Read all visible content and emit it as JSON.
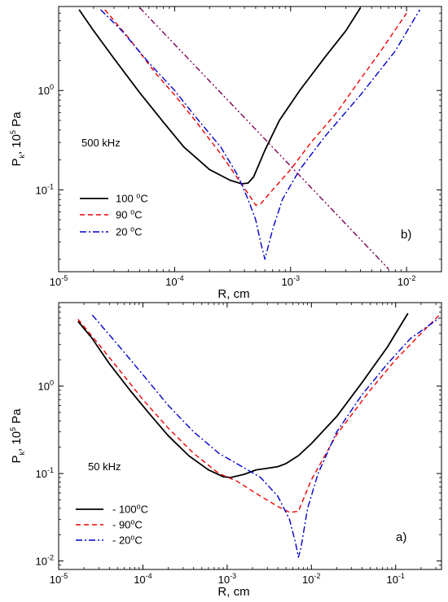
{
  "chart_data": [
    {
      "type": "line",
      "panel_tag": "b)",
      "frequency_label": "500 kHz",
      "xlabel": "R, cm",
      "ylabel": "P_k, 10^5 Pa",
      "xscale": "log",
      "yscale": "log",
      "xlim": [
        1e-05,
        0.02
      ],
      "ylim": [
        0.015,
        7
      ],
      "x_ticks": [
        {
          "value": 1e-05,
          "base": "10",
          "exp": "-5"
        },
        {
          "value": 0.0001,
          "base": "10",
          "exp": "-4"
        },
        {
          "value": 0.001,
          "base": "10",
          "exp": "-3"
        },
        {
          "value": 0.01,
          "base": "10",
          "exp": "-2"
        }
      ],
      "y_ticks": [
        {
          "value": 0.1,
          "base": "10",
          "exp": "-1"
        },
        {
          "value": 1,
          "base": "10",
          "exp": "0"
        }
      ],
      "legend_placement": "bottom-left",
      "series": [
        {
          "name": "100 °C",
          "color": "#000000",
          "dash": "solid",
          "x": [
            1.5e-05,
            2e-05,
            3e-05,
            5e-05,
            8e-05,
            0.00012,
            0.0002,
            0.0003,
            0.00038,
            0.00043,
            0.00048,
            0.0006,
            0.0008,
            0.0012,
            0.002,
            0.003,
            0.004
          ],
          "y": [
            6.5,
            4.0,
            2.1,
            0.95,
            0.48,
            0.27,
            0.16,
            0.125,
            0.115,
            0.117,
            0.135,
            0.25,
            0.5,
            1.0,
            2.2,
            4.0,
            6.8
          ]
        },
        {
          "name": "90 °C",
          "color": "#ee0000",
          "dash": "6,4",
          "x": [
            2.5e-05,
            4e-05,
            7e-05,
            0.0001,
            0.00015,
            0.00025,
            0.00035,
            0.00045,
            0.0005,
            0.00055,
            0.0007,
            0.001,
            0.0015,
            0.0025,
            0.004,
            0.006,
            0.01
          ],
          "y": [
            6.5,
            3.4,
            1.45,
            0.9,
            0.5,
            0.23,
            0.13,
            0.085,
            0.07,
            0.072,
            0.1,
            0.16,
            0.3,
            0.6,
            1.3,
            2.5,
            6.0
          ]
        },
        {
          "name": "20 °C",
          "color": "#0000cc",
          "dash": "8,3,2,3",
          "x": [
            2.3e-05,
            3.5e-05,
            6e-05,
            0.0001,
            0.00015,
            0.00025,
            0.00035,
            0.00043,
            0.0005,
            0.00055,
            0.0006,
            0.0007,
            0.00085,
            0.0012,
            0.002,
            0.004,
            0.008,
            0.013
          ],
          "y": [
            6.5,
            4.0,
            1.9,
            1.0,
            0.55,
            0.27,
            0.14,
            0.08,
            0.05,
            0.03,
            0.02,
            0.04,
            0.08,
            0.16,
            0.35,
            0.9,
            2.5,
            6.5
          ]
        },
        {
          "name": "",
          "color": "#7a0055",
          "dash": "7,3,2,3,2,3",
          "x": [
            5e-05,
            0.007
          ],
          "y": [
            6.8,
            0.016
          ]
        }
      ]
    },
    {
      "type": "line",
      "panel_tag": "a)",
      "frequency_label": "50 kHz",
      "xlabel": "R, cm",
      "ylabel": "P_k, 10^5 Pa",
      "xscale": "log",
      "yscale": "log",
      "xlim": [
        1e-05,
        0.35
      ],
      "ylim": [
        0.008,
        9
      ],
      "x_ticks": [
        {
          "value": 1e-05,
          "base": "10",
          "exp": "-5"
        },
        {
          "value": 0.0001,
          "base": "10",
          "exp": "-4"
        },
        {
          "value": 0.001,
          "base": "10",
          "exp": "-3"
        },
        {
          "value": 0.01,
          "base": "10",
          "exp": "-2"
        },
        {
          "value": 0.1,
          "base": "10",
          "exp": "-1"
        }
      ],
      "y_ticks": [
        {
          "value": 0.01,
          "base": "10",
          "exp": "-2"
        },
        {
          "value": 0.1,
          "base": "10",
          "exp": "-1"
        },
        {
          "value": 1,
          "base": "10",
          "exp": "0"
        }
      ],
      "legend_placement": "bottom-left",
      "series": [
        {
          "name": "- 100⁰C",
          "color": "#000000",
          "dash": "solid",
          "x": [
            1.7e-05,
            2.5e-05,
            4e-05,
            7e-05,
            0.00012,
            0.0002,
            0.00035,
            0.0006,
            0.0009,
            0.0011,
            0.0016,
            0.0022,
            0.003,
            0.004,
            0.005,
            0.007,
            0.01,
            0.02,
            0.04,
            0.08,
            0.14
          ],
          "y": [
            5.5,
            3.5,
            1.8,
            0.9,
            0.48,
            0.27,
            0.16,
            0.11,
            0.092,
            0.09,
            0.098,
            0.11,
            0.115,
            0.12,
            0.13,
            0.16,
            0.22,
            0.45,
            1.1,
            2.8,
            6.8
          ]
        },
        {
          "name": "- 90⁰C",
          "color": "#ee0000",
          "dash": "6,4",
          "x": [
            1.7e-05,
            3e-05,
            6e-05,
            0.0001,
            0.0002,
            0.0004,
            0.0008,
            0.0013,
            0.0025,
            0.004,
            0.0055,
            0.007,
            0.01,
            0.02,
            0.05,
            0.1,
            0.2,
            0.33
          ],
          "y": [
            5.8,
            3.0,
            1.3,
            0.7,
            0.33,
            0.17,
            0.1,
            0.082,
            0.055,
            0.042,
            0.036,
            0.037,
            0.085,
            0.28,
            0.9,
            2.0,
            4.0,
            6.5
          ]
        },
        {
          "name": "- 20⁰C",
          "color": "#0000cc",
          "dash": "8,3,2,3",
          "x": [
            2.5e-05,
            5e-05,
            0.0001,
            0.0002,
            0.0004,
            0.0008,
            0.0015,
            0.0025,
            0.004,
            0.0055,
            0.0065,
            0.007,
            0.0075,
            0.009,
            0.012,
            0.02,
            0.04,
            0.08,
            0.15,
            0.33
          ],
          "y": [
            6.5,
            3.0,
            1.35,
            0.6,
            0.3,
            0.17,
            0.12,
            0.09,
            0.055,
            0.03,
            0.016,
            0.011,
            0.014,
            0.04,
            0.1,
            0.3,
            0.8,
            1.8,
            3.5,
            6.0
          ]
        }
      ]
    }
  ]
}
